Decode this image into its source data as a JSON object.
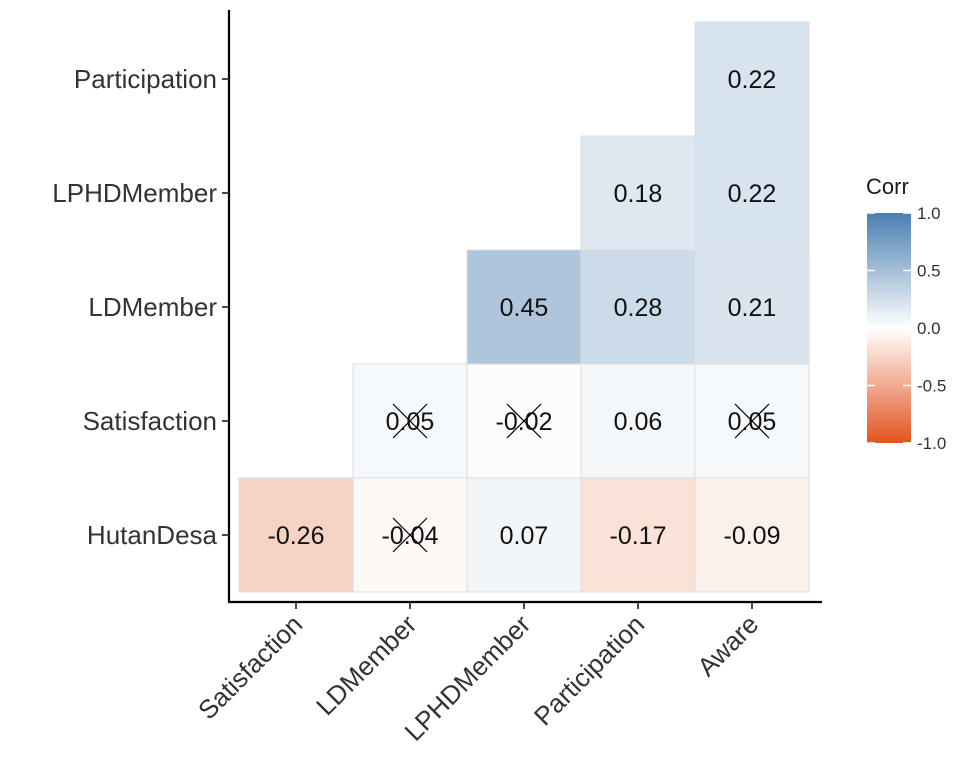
{
  "chart_data": {
    "type": "heatmap",
    "title": "",
    "xlabel": "",
    "ylabel": "",
    "x_categories": [
      "Satisfaction",
      "LDMember",
      "LPHDMember",
      "Participation",
      "Aware"
    ],
    "y_categories": [
      "HutanDesa",
      "Satisfaction",
      "LDMember",
      "LPHDMember",
      "Participation"
    ],
    "cells": [
      {
        "x": "Satisfaction",
        "y": "HutanDesa",
        "value": -0.26,
        "label": "-0.26",
        "insignificant": false
      },
      {
        "x": "LDMember",
        "y": "HutanDesa",
        "value": -0.04,
        "label": "-0.04",
        "insignificant": true
      },
      {
        "x": "LPHDMember",
        "y": "HutanDesa",
        "value": 0.07,
        "label": "0.07",
        "insignificant": false
      },
      {
        "x": "Participation",
        "y": "HutanDesa",
        "value": -0.17,
        "label": "-0.17",
        "insignificant": false
      },
      {
        "x": "Aware",
        "y": "HutanDesa",
        "value": -0.09,
        "label": "-0.09",
        "insignificant": false
      },
      {
        "x": "LDMember",
        "y": "Satisfaction",
        "value": 0.05,
        "label": "0.05",
        "insignificant": true
      },
      {
        "x": "LPHDMember",
        "y": "Satisfaction",
        "value": -0.02,
        "label": "-0.02",
        "insignificant": true
      },
      {
        "x": "Participation",
        "y": "Satisfaction",
        "value": 0.06,
        "label": "0.06",
        "insignificant": false
      },
      {
        "x": "Aware",
        "y": "Satisfaction",
        "value": 0.05,
        "label": "0.05",
        "insignificant": true
      },
      {
        "x": "LPHDMember",
        "y": "LDMember",
        "value": 0.45,
        "label": "0.45",
        "insignificant": false
      },
      {
        "x": "Participation",
        "y": "LDMember",
        "value": 0.28,
        "label": "0.28",
        "insignificant": false
      },
      {
        "x": "Aware",
        "y": "LDMember",
        "value": 0.21,
        "label": "0.21",
        "insignificant": false
      },
      {
        "x": "Participation",
        "y": "LPHDMember",
        "value": 0.18,
        "label": "0.18",
        "insignificant": false
      },
      {
        "x": "Aware",
        "y": "LPHDMember",
        "value": 0.22,
        "label": "0.22",
        "insignificant": false
      },
      {
        "x": "Aware",
        "y": "Participation",
        "value": 0.22,
        "label": "0.22",
        "insignificant": false
      }
    ],
    "legend": {
      "title": "Corr",
      "position": "right",
      "limits": [
        -1.0,
        1.0
      ],
      "ticks": [
        1.0,
        0.5,
        0.0,
        -0.5,
        -1.0
      ],
      "tick_labels": [
        "1.0",
        "0.5",
        "0.0",
        "-0.5",
        "-1.0"
      ]
    },
    "colors": {
      "positive": "#4a7fb0",
      "mid": "#ffffff",
      "negative": "#e2541f",
      "tile_border": "#dcdcdc",
      "axis": "#000000",
      "text": "#333333",
      "cross": "#000000"
    },
    "grid": false
  }
}
